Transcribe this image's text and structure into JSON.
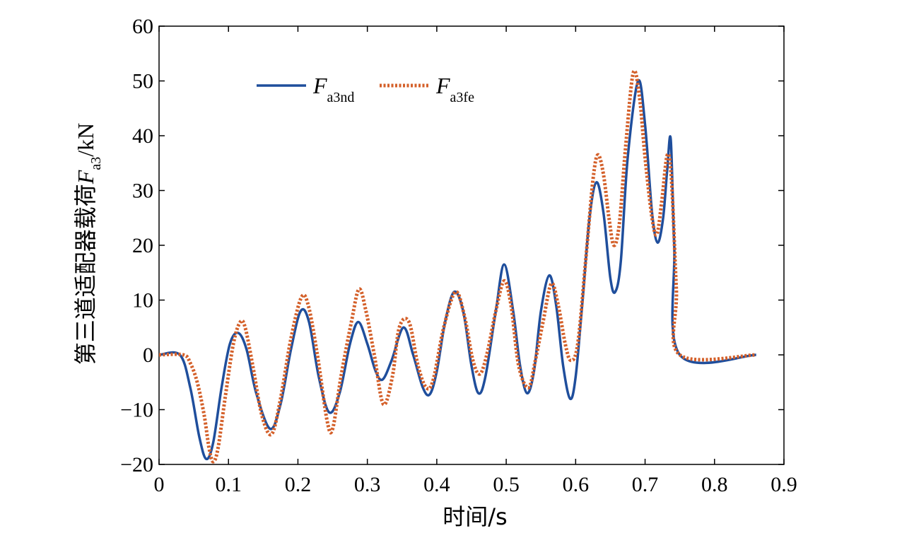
{
  "chart_data": {
    "type": "line",
    "title": "",
    "xlabel": "时间/s",
    "ylabel": {
      "prefix": "第三道适配器载荷",
      "symbol": "F",
      "subscript": "a3",
      "unit": "/kN"
    },
    "xlim": [
      0,
      0.9
    ],
    "ylim": [
      -20,
      60
    ],
    "xticks": [
      0,
      0.1,
      0.2,
      0.3,
      0.4,
      0.5,
      0.6,
      0.7,
      0.8,
      0.9
    ],
    "xtick_labels": [
      "0",
      "0.1",
      "0.2",
      "0.3",
      "0.4",
      "0.5",
      "0.6",
      "0.7",
      "0.8",
      "0.9"
    ],
    "yticks": [
      -20,
      -10,
      0,
      10,
      20,
      30,
      40,
      50,
      60
    ],
    "ytick_labels": [
      "−20",
      "−10",
      "0",
      "10",
      "20",
      "30",
      "40",
      "50",
      "60"
    ],
    "grid": false,
    "legend_position": "top-left",
    "series": [
      {
        "name": "F",
        "name_sub": "a3nd",
        "color": "#1f4e9c",
        "style": "solid",
        "points": [
          [
            0,
            0
          ],
          [
            0.03,
            0
          ],
          [
            0.045,
            -6
          ],
          [
            0.058,
            -15
          ],
          [
            0.068,
            -19
          ],
          [
            0.078,
            -16
          ],
          [
            0.09,
            -6
          ],
          [
            0.102,
            2
          ],
          [
            0.114,
            4
          ],
          [
            0.126,
            1
          ],
          [
            0.14,
            -7
          ],
          [
            0.16,
            -13.5
          ],
          [
            0.175,
            -9
          ],
          [
            0.19,
            1
          ],
          [
            0.204,
            8
          ],
          [
            0.216,
            6
          ],
          [
            0.23,
            -4
          ],
          [
            0.245,
            -10.5
          ],
          [
            0.26,
            -7
          ],
          [
            0.275,
            2
          ],
          [
            0.287,
            6
          ],
          [
            0.3,
            2
          ],
          [
            0.312,
            -3
          ],
          [
            0.322,
            -4.5
          ],
          [
            0.335,
            -1
          ],
          [
            0.352,
            5
          ],
          [
            0.366,
            0
          ],
          [
            0.38,
            -6
          ],
          [
            0.39,
            -7.2
          ],
          [
            0.4,
            -3
          ],
          [
            0.412,
            6
          ],
          [
            0.425,
            11.5
          ],
          [
            0.438,
            8
          ],
          [
            0.45,
            -2
          ],
          [
            0.46,
            -7
          ],
          [
            0.47,
            -4
          ],
          [
            0.485,
            8
          ],
          [
            0.497,
            16.5
          ],
          [
            0.51,
            8
          ],
          [
            0.52,
            -2
          ],
          [
            0.53,
            -7
          ],
          [
            0.54,
            -3
          ],
          [
            0.55,
            8
          ],
          [
            0.562,
            14.5
          ],
          [
            0.572,
            9
          ],
          [
            0.582,
            -2
          ],
          [
            0.592,
            -8
          ],
          [
            0.6,
            -4
          ],
          [
            0.61,
            10
          ],
          [
            0.62,
            25
          ],
          [
            0.63,
            31.5
          ],
          [
            0.64,
            26
          ],
          [
            0.65,
            14
          ],
          [
            0.657,
            11.5
          ],
          [
            0.665,
            17
          ],
          [
            0.675,
            36
          ],
          [
            0.69,
            50
          ],
          [
            0.7,
            42
          ],
          [
            0.71,
            26
          ],
          [
            0.718,
            20.5
          ],
          [
            0.726,
            25
          ],
          [
            0.732,
            34
          ],
          [
            0.737,
            39.3
          ],
          [
            0.742,
            20
          ],
          [
            0.75,
            0
          ],
          [
            0.86,
            0
          ]
        ]
      },
      {
        "name": "F",
        "name_sub": "a3fe",
        "color": "#d4602a",
        "style": "dotted",
        "points": [
          [
            0,
            0
          ],
          [
            0.035,
            0
          ],
          [
            0.045,
            -1.5
          ],
          [
            0.055,
            -5
          ],
          [
            0.065,
            -11
          ],
          [
            0.072,
            -17
          ],
          [
            0.078,
            -19.5
          ],
          [
            0.085,
            -17
          ],
          [
            0.095,
            -8
          ],
          [
            0.107,
            2
          ],
          [
            0.117,
            6
          ],
          [
            0.124,
            5
          ],
          [
            0.135,
            -2
          ],
          [
            0.148,
            -11
          ],
          [
            0.162,
            -14.5
          ],
          [
            0.175,
            -8
          ],
          [
            0.19,
            3
          ],
          [
            0.205,
            10.5
          ],
          [
            0.215,
            9
          ],
          [
            0.228,
            0
          ],
          [
            0.242,
            -12
          ],
          [
            0.25,
            -13.5
          ],
          [
            0.262,
            -4
          ],
          [
            0.277,
            6
          ],
          [
            0.288,
            12
          ],
          [
            0.298,
            8
          ],
          [
            0.31,
            0
          ],
          [
            0.323,
            -9
          ],
          [
            0.336,
            -4
          ],
          [
            0.346,
            5
          ],
          [
            0.36,
            6
          ],
          [
            0.373,
            -2
          ],
          [
            0.385,
            -6
          ],
          [
            0.395,
            -4.5
          ],
          [
            0.41,
            5
          ],
          [
            0.427,
            11.5
          ],
          [
            0.44,
            7
          ],
          [
            0.452,
            -1
          ],
          [
            0.462,
            -3.5
          ],
          [
            0.472,
            0
          ],
          [
            0.485,
            8
          ],
          [
            0.497,
            13.5
          ],
          [
            0.507,
            9
          ],
          [
            0.518,
            -2
          ],
          [
            0.532,
            -6
          ],
          [
            0.542,
            -1
          ],
          [
            0.553,
            6
          ],
          [
            0.565,
            13
          ],
          [
            0.575,
            9
          ],
          [
            0.585,
            2
          ],
          [
            0.593,
            -1
          ],
          [
            0.603,
            2
          ],
          [
            0.615,
            18
          ],
          [
            0.625,
            32
          ],
          [
            0.632,
            36.5
          ],
          [
            0.64,
            33
          ],
          [
            0.648,
            25
          ],
          [
            0.655,
            20
          ],
          [
            0.663,
            24
          ],
          [
            0.672,
            38
          ],
          [
            0.683,
            51.5
          ],
          [
            0.692,
            47
          ],
          [
            0.7,
            36
          ],
          [
            0.71,
            25
          ],
          [
            0.717,
            22
          ],
          [
            0.724,
            28
          ],
          [
            0.732,
            36.5
          ],
          [
            0.738,
            32
          ],
          [
            0.745,
            12
          ],
          [
            0.75,
            0
          ],
          [
            0.86,
            0
          ]
        ]
      }
    ]
  }
}
